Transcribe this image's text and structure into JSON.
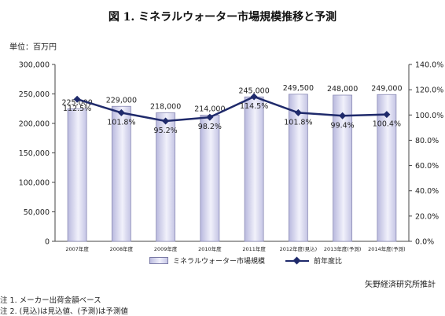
{
  "title": "図 1. ミネラルウォーター市場規模推移と予測",
  "unit_label": "単位：百万円",
  "source": "矢野経済研究所推計",
  "notes": [
    "注 1. メーカー出荷金額ベース",
    "注 2. (見込)は見込値、(予測)は予測値"
  ],
  "legend": {
    "bar_label": "ミネラルウォーター市場規模",
    "line_label": "前年度比"
  },
  "colors": {
    "bar": "#d8d8ef",
    "bar_edge": "#8a8ab4",
    "line": "#1f2a6b"
  },
  "chart_data": {
    "type": "bar",
    "title": "図 1. ミネラルウォーター市場規模推移と予測",
    "categories": [
      "2007年度",
      "2008年度",
      "2009年度",
      "2010年度",
      "2011年度",
      "2012年度(見込)",
      "2013年度(予測)",
      "2014年度(予測)"
    ],
    "series": [
      {
        "name": "ミネラルウォーター市場規模",
        "type": "bar",
        "axis": "left",
        "values": [
          225000,
          229000,
          218000,
          214000,
          245000,
          249500,
          248000,
          249000
        ],
        "labels": [
          "225,000",
          "229,000",
          "218,000",
          "214,000",
          "245,000",
          "249,500",
          "248,000",
          "249,000"
        ]
      },
      {
        "name": "前年度比",
        "type": "line",
        "axis": "right",
        "values": [
          112.5,
          101.8,
          95.2,
          98.2,
          114.5,
          101.8,
          99.4,
          100.4
        ],
        "labels": [
          "112.5%",
          "101.8%",
          "95.2%",
          "98.2%",
          "114.5%",
          "101.8%",
          "99.4%",
          "100.4%"
        ]
      }
    ],
    "ylabel": "単位：百万円",
    "ylim": [
      0,
      300000
    ],
    "y_ticks": [
      "0",
      "50,000",
      "100,000",
      "150,000",
      "200,000",
      "250,000",
      "300,000"
    ],
    "y2lim": [
      0,
      140
    ],
    "y2_ticks": [
      "0.0%",
      "20.0%",
      "40.0%",
      "60.0%",
      "80.0%",
      "100.0%",
      "120.0%",
      "140.0%"
    ],
    "grid": false,
    "legend_position": "bottom"
  }
}
